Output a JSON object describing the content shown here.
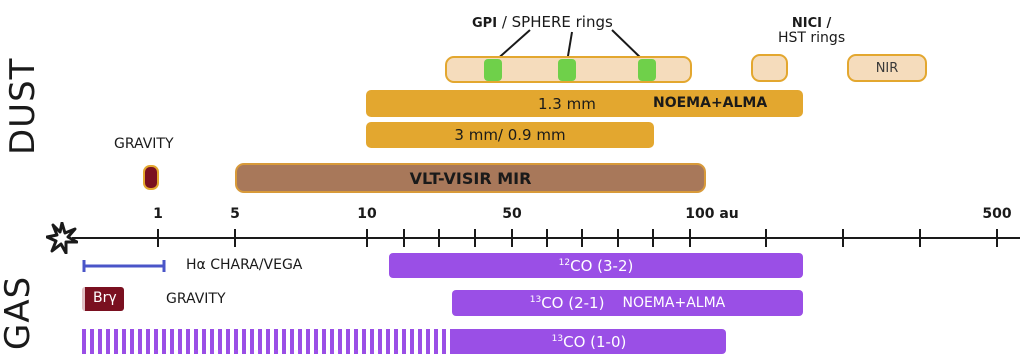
{
  "sections": {
    "dust": "DUST",
    "gas": "GAS"
  },
  "dust": {
    "gpi_sphere": {
      "bold": "GPI",
      "rest": " / SPHERE rings"
    },
    "nici_hst": {
      "line1": "NICI /",
      "line2": "HST rings"
    },
    "nir": "NIR",
    "mm13": "1.3 mm",
    "noema_alma": "NOEMA+ALMA",
    "mm3": "3 mm/ 0.9 mm",
    "gravity": "GRAVITY",
    "visir": "VLT-VISIR MIR"
  },
  "axis": {
    "star_icon": "star-icon",
    "labels": [
      "1",
      "5",
      "10",
      "50",
      "100 au",
      "500"
    ]
  },
  "gas": {
    "halpha": "Hα CHARA/VEGA",
    "brg": "Brγ",
    "gravity": "GRAVITY",
    "co12": {
      "sup": "12",
      "text": "CO (3-2)"
    },
    "co13a": {
      "sup": "13",
      "text": "CO (2-1)",
      "extra": "NOEMA+ALMA"
    },
    "co13b": {
      "sup": "13",
      "text": "CO (1-0)"
    }
  },
  "colors": {
    "gold": "#e3a72f",
    "brown": "#a8785a",
    "purple": "#9a4fe6",
    "green": "#6fd04a",
    "darkred": "#7a1020",
    "blue": "#4a55c8"
  }
}
